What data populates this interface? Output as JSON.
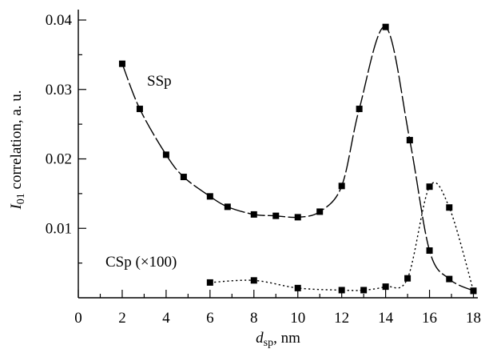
{
  "chart_data": {
    "type": "line",
    "title": "",
    "xlabel": {
      "main": "d",
      "sub": "sp",
      "rest": ", nm"
    },
    "ylabel": {
      "main": "I",
      "sub": "01",
      "rest": " correlation, a. u."
    },
    "xlim": [
      0,
      18.2
    ],
    "ylim": [
      0,
      0.0415
    ],
    "xticks": [
      0,
      2,
      4,
      6,
      8,
      10,
      12,
      14,
      16,
      18
    ],
    "xtick_labels": [
      "0",
      "2",
      "4",
      "6",
      "8",
      "10",
      "12",
      "14",
      "16",
      "18"
    ],
    "yticks": [
      0.01,
      0.02,
      0.03,
      0.04
    ],
    "ytick_labels": [
      "0.01",
      "0.02",
      "0.03",
      "0.04"
    ],
    "grid": false,
    "series": [
      {
        "name": "SSp",
        "line_style": "dashed-long",
        "marker": "square",
        "x": [
          2,
          2.8,
          4,
          4.8,
          6,
          6.8,
          8,
          9,
          10,
          11,
          12,
          12.8,
          14,
          15.1,
          16,
          16.9,
          18
        ],
        "y": [
          0.0337,
          0.0272,
          0.0206,
          0.0174,
          0.0146,
          0.0131,
          0.012,
          0.0118,
          0.0116,
          0.0124,
          0.0161,
          0.0272,
          0.039,
          0.0227,
          0.0068,
          0.0027,
          0.001
        ]
      },
      {
        "name": "CSp (×100)",
        "line_style": "dotted",
        "marker": "square",
        "x": [
          6,
          8,
          10,
          12,
          13,
          14,
          15,
          16,
          16.9,
          18
        ],
        "y": [
          0.0022,
          0.0025,
          0.0014,
          0.0011,
          0.0011,
          0.0016,
          0.0028,
          0.016,
          0.013,
          0.001
        ]
      }
    ]
  }
}
